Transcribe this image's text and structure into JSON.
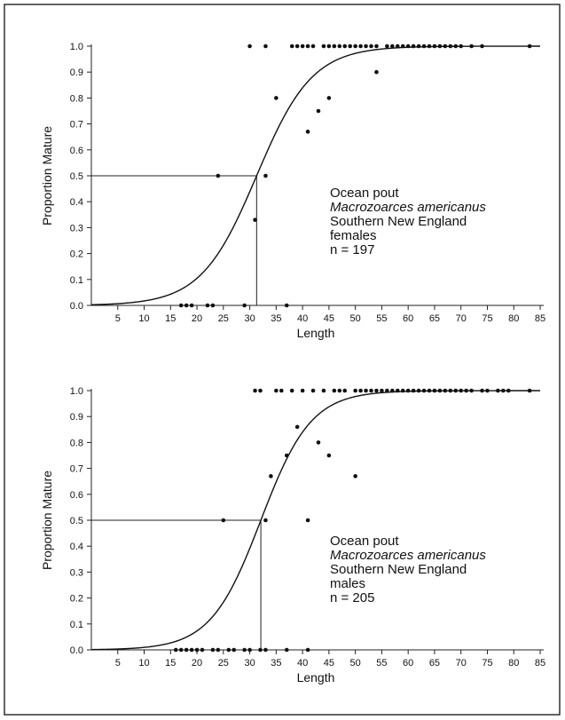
{
  "chart_data": [
    {
      "type": "scatter",
      "title": "",
      "xlabel": "Length",
      "ylabel": "Proportion Mature",
      "xlim": [
        0,
        85
      ],
      "ylim": [
        0,
        1
      ],
      "x_ticks": [
        5,
        10,
        15,
        20,
        25,
        30,
        35,
        40,
        45,
        50,
        55,
        60,
        65,
        70,
        75,
        80,
        85
      ],
      "y_ticks": [
        "0.0",
        "0.1",
        "0.2",
        "0.3",
        "0.4",
        "0.5",
        "0.6",
        "0.7",
        "0.8",
        "0.9",
        "1.0"
      ],
      "grid": false,
      "legend": [
        "Ocean pout",
        "Macrozoarces americanus",
        "Southern New England",
        "females",
        "n = 197"
      ],
      "l50": 31.3,
      "curve": {
        "type": "logistic",
        "midpoint": 31.3,
        "slope": 0.19
      },
      "points": [
        [
          17,
          0
        ],
        [
          18,
          0
        ],
        [
          19,
          0
        ],
        [
          22,
          0
        ],
        [
          23,
          0
        ],
        [
          29,
          0
        ],
        [
          37,
          0
        ],
        [
          24,
          0.5
        ],
        [
          33,
          0.5
        ],
        [
          31,
          0.33
        ],
        [
          35,
          0.8
        ],
        [
          41,
          0.67
        ],
        [
          43,
          0.75
        ],
        [
          45,
          0.8
        ],
        [
          54,
          0.9
        ],
        [
          30,
          1
        ],
        [
          33,
          1
        ],
        [
          38,
          1
        ],
        [
          39,
          1
        ],
        [
          40,
          1
        ],
        [
          41,
          1
        ],
        [
          42,
          1
        ],
        [
          44,
          1
        ],
        [
          45,
          1
        ],
        [
          46,
          1
        ],
        [
          47,
          1
        ],
        [
          48,
          1
        ],
        [
          49,
          1
        ],
        [
          50,
          1
        ],
        [
          51,
          1
        ],
        [
          52,
          1
        ],
        [
          53,
          1
        ],
        [
          54,
          1
        ],
        [
          56,
          1
        ],
        [
          57,
          1
        ],
        [
          58,
          1
        ],
        [
          59,
          1
        ],
        [
          60,
          1
        ],
        [
          61,
          1
        ],
        [
          62,
          1
        ],
        [
          63,
          1
        ],
        [
          64,
          1
        ],
        [
          65,
          1
        ],
        [
          66,
          1
        ],
        [
          67,
          1
        ],
        [
          68,
          1
        ],
        [
          69,
          1
        ],
        [
          70,
          1
        ],
        [
          72,
          1
        ],
        [
          74,
          1
        ],
        [
          83,
          1
        ]
      ]
    },
    {
      "type": "scatter",
      "title": "",
      "xlabel": "Length",
      "ylabel": "Proportion Mature",
      "xlim": [
        0,
        85
      ],
      "ylim": [
        0,
        1
      ],
      "x_ticks": [
        5,
        10,
        15,
        20,
        25,
        30,
        35,
        40,
        45,
        50,
        55,
        60,
        65,
        70,
        75,
        80,
        85
      ],
      "y_ticks": [
        "0.0",
        "0.1",
        "0.2",
        "0.3",
        "0.4",
        "0.5",
        "0.6",
        "0.7",
        "0.8",
        "0.9",
        "1.0"
      ],
      "grid": false,
      "legend": [
        "Ocean pout",
        "Macrozoarces americanus",
        "Southern New England",
        "males",
        "n = 205"
      ],
      "l50": 32.1,
      "curve": {
        "type": "logistic",
        "midpoint": 32.1,
        "slope": 0.21
      },
      "points": [
        [
          16,
          0
        ],
        [
          17,
          0
        ],
        [
          18,
          0
        ],
        [
          19,
          0
        ],
        [
          20,
          0
        ],
        [
          21,
          0
        ],
        [
          23,
          0
        ],
        [
          24,
          0
        ],
        [
          26,
          0
        ],
        [
          27,
          0
        ],
        [
          29,
          0
        ],
        [
          30,
          0
        ],
        [
          32,
          0
        ],
        [
          33,
          0
        ],
        [
          37,
          0
        ],
        [
          41,
          0
        ],
        [
          25,
          0.5
        ],
        [
          33,
          0.5
        ],
        [
          41,
          0.5
        ],
        [
          34,
          0.67
        ],
        [
          50,
          0.67
        ],
        [
          37,
          0.75
        ],
        [
          45,
          0.75
        ],
        [
          43,
          0.8
        ],
        [
          39,
          0.86
        ],
        [
          31,
          1
        ],
        [
          32,
          1
        ],
        [
          35,
          1
        ],
        [
          36,
          1
        ],
        [
          38,
          1
        ],
        [
          40,
          1
        ],
        [
          42,
          1
        ],
        [
          44,
          1
        ],
        [
          46,
          1
        ],
        [
          47,
          1
        ],
        [
          48,
          1
        ],
        [
          50,
          1
        ],
        [
          51,
          1
        ],
        [
          52,
          1
        ],
        [
          53,
          1
        ],
        [
          54,
          1
        ],
        [
          55,
          1
        ],
        [
          56,
          1
        ],
        [
          57,
          1
        ],
        [
          58,
          1
        ],
        [
          59,
          1
        ],
        [
          60,
          1
        ],
        [
          61,
          1
        ],
        [
          62,
          1
        ],
        [
          63,
          1
        ],
        [
          64,
          1
        ],
        [
          65,
          1
        ],
        [
          66,
          1
        ],
        [
          67,
          1
        ],
        [
          68,
          1
        ],
        [
          69,
          1
        ],
        [
          70,
          1
        ],
        [
          71,
          1
        ],
        [
          72,
          1
        ],
        [
          74,
          1
        ],
        [
          75,
          1
        ],
        [
          77,
          1
        ],
        [
          78,
          1
        ],
        [
          79,
          1
        ],
        [
          83,
          1
        ]
      ]
    }
  ]
}
